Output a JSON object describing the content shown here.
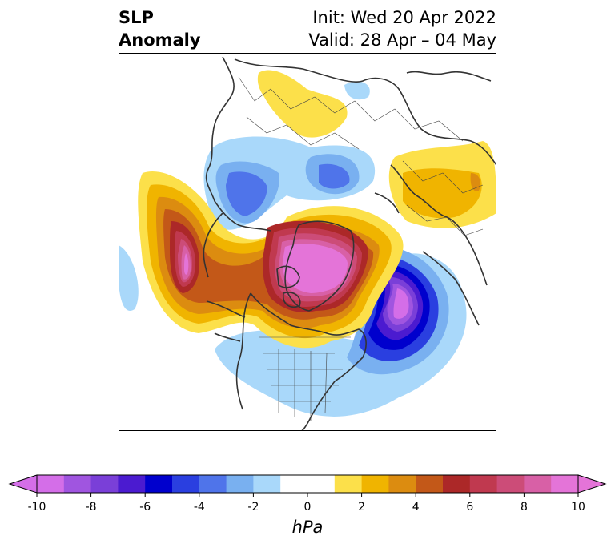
{
  "title": {
    "variable_line1": "SLP",
    "variable_line2": "Anomaly",
    "init_line": "Init: Wed 20 Apr 2022",
    "valid_line": "Valid: 28 Apr – 04 May"
  },
  "map": {
    "projection": "polar-stereographic",
    "region": "Northern Hemisphere (North America / Arctic / Europe)"
  },
  "colorbar": {
    "unit": "hPa",
    "min": -10,
    "max": 10,
    "step": 1,
    "tick_labels": [
      "-10",
      "-8",
      "-6",
      "-4",
      "-2",
      "0",
      "2",
      "4",
      "6",
      "8",
      "10"
    ],
    "colors": [
      "#d46ee8",
      "#a055e0",
      "#7a3fd8",
      "#4b1bd0",
      "#0000cd",
      "#2a3fe0",
      "#4f74ea",
      "#79b0f0",
      "#a9d8fa",
      "#ffffff",
      "#ffffff",
      "#fce04a",
      "#f0b400",
      "#dc8c10",
      "#c35818",
      "#ac2828",
      "#c0394f",
      "#cc4c78",
      "#d860a6",
      "#e474d8"
    ],
    "extend": "both"
  }
}
